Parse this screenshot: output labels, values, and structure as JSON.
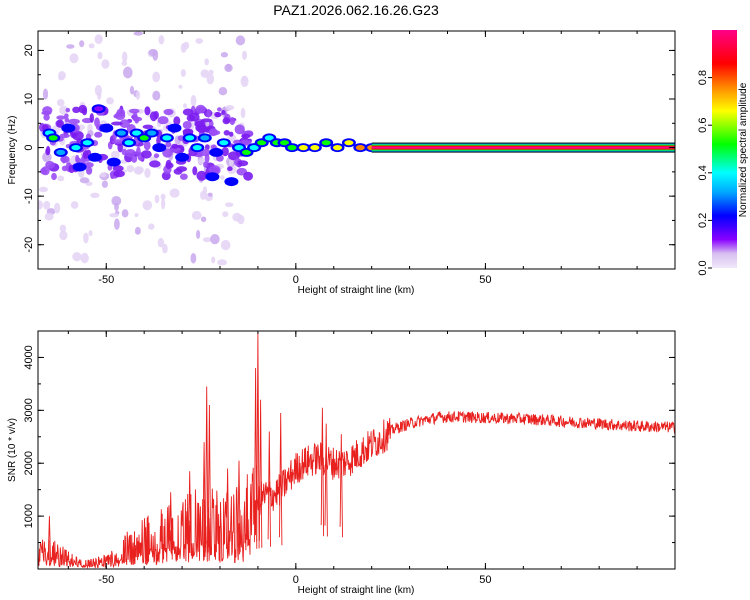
{
  "title": "PAZ1.2026.062.16.26.G23",
  "chart_data": [
    {
      "type": "heatmap",
      "title": "PAZ1.2026.062.16.26.G23",
      "xlabel": "Height of straight line (km)",
      "ylabel": "Frequency (Hz)",
      "xlim": [
        -68,
        100
      ],
      "ylim": [
        -25,
        24
      ],
      "xticks": [
        -50,
        0,
        50
      ],
      "yticks": [
        -20,
        -10,
        0,
        10,
        20
      ],
      "ridge_frequency_hz": 0,
      "colorbar": {
        "label": "Normalized spectral amplitude",
        "range": [
          0,
          1
        ],
        "ticks": [
          "0.0",
          "0.2",
          "0.4",
          "0.6",
          "0.8"
        ],
        "colors": [
          "#f0e8f8",
          "#8800ff",
          "#0000ff",
          "#00aaff",
          "#00ffff",
          "#00ff00",
          "#ffff00",
          "#ff8800",
          "#ff0000",
          "#ff0088"
        ]
      },
      "blobs": [
        {
          "x": -65,
          "f": 3,
          "a": 0.45
        },
        {
          "x": -64,
          "f": 2,
          "a": 0.55
        },
        {
          "x": -62,
          "f": -1,
          "a": 0.35
        },
        {
          "x": -60,
          "f": 4,
          "a": 0.25
        },
        {
          "x": -58,
          "f": 0,
          "a": 0.4
        },
        {
          "x": -57,
          "f": -4,
          "a": 0.3
        },
        {
          "x": -55,
          "f": 1,
          "a": 0.5
        },
        {
          "x": -53,
          "f": -2,
          "a": 0.3
        },
        {
          "x": -52,
          "f": 8,
          "a": 0.2
        },
        {
          "x": -50,
          "f": 4,
          "a": 0.3
        },
        {
          "x": -48,
          "f": -3,
          "a": 0.25
        },
        {
          "x": -46,
          "f": 3,
          "a": 0.35
        },
        {
          "x": -44,
          "f": 1,
          "a": 0.45
        },
        {
          "x": -42,
          "f": 3,
          "a": 0.4
        },
        {
          "x": -40,
          "f": 2,
          "a": 0.55
        },
        {
          "x": -38,
          "f": 3,
          "a": 0.35
        },
        {
          "x": -36,
          "f": 0,
          "a": 0.3
        },
        {
          "x": -34,
          "f": 2,
          "a": 0.45
        },
        {
          "x": -32,
          "f": 4,
          "a": 0.3
        },
        {
          "x": -30,
          "f": -2,
          "a": 0.3
        },
        {
          "x": -28,
          "f": 2,
          "a": 0.4
        },
        {
          "x": -26,
          "f": 0,
          "a": 0.45
        },
        {
          "x": -24,
          "f": 2,
          "a": 0.35
        },
        {
          "x": -22,
          "f": -6,
          "a": 0.25
        },
        {
          "x": -21,
          "f": -1,
          "a": 0.3
        },
        {
          "x": -19,
          "f": 1,
          "a": 0.45
        },
        {
          "x": -17,
          "f": -7,
          "a": 0.25
        },
        {
          "x": -15,
          "f": 0,
          "a": 0.4
        },
        {
          "x": -13,
          "f": -1,
          "a": 0.55
        },
        {
          "x": -11,
          "f": 0,
          "a": 0.5
        },
        {
          "x": -9,
          "f": 1,
          "a": 0.55
        },
        {
          "x": -7,
          "f": 2,
          "a": 0.5
        },
        {
          "x": -5,
          "f": 1,
          "a": 0.6
        },
        {
          "x": -3,
          "f": 1,
          "a": 0.55
        },
        {
          "x": -1,
          "f": 0,
          "a": 0.6
        },
        {
          "x": 2,
          "f": 0,
          "a": 0.75
        },
        {
          "x": 5,
          "f": 0,
          "a": 0.7
        },
        {
          "x": 8,
          "f": 1,
          "a": 0.65
        },
        {
          "x": 11,
          "f": 0,
          "a": 0.75
        },
        {
          "x": 14,
          "f": 1,
          "a": 0.7
        },
        {
          "x": 17,
          "f": 0,
          "a": 0.8
        },
        {
          "x": 20,
          "f": 0,
          "a": 0.85
        }
      ]
    },
    {
      "type": "line",
      "xlabel": "Height of straight line (km)",
      "ylabel": "SNR (10 * v/v)",
      "xlim": [
        -68,
        100
      ],
      "ylim": [
        0,
        4500
      ],
      "xticks": [
        -50,
        0,
        50
      ],
      "yticks": [
        1000,
        2000,
        3000,
        4000
      ],
      "color": "#e8201e",
      "series": [
        {
          "name": "SNR",
          "envelope": [
            {
              "x": -68,
              "y": 300
            },
            {
              "x": -66,
              "y": 450
            },
            {
              "x": -64,
              "y": 380
            },
            {
              "x": -62,
              "y": 300
            },
            {
              "x": -60,
              "y": 220
            },
            {
              "x": -58,
              "y": 160
            },
            {
              "x": -56,
              "y": 120
            },
            {
              "x": -54,
              "y": 120
            },
            {
              "x": -52,
              "y": 150
            },
            {
              "x": -50,
              "y": 200
            },
            {
              "x": -48,
              "y": 280
            },
            {
              "x": -46,
              "y": 380
            },
            {
              "x": -44,
              "y": 480
            },
            {
              "x": -42,
              "y": 560
            },
            {
              "x": -40,
              "y": 650
            },
            {
              "x": -38,
              "y": 700
            },
            {
              "x": -36,
              "y": 770
            },
            {
              "x": -34,
              "y": 830
            },
            {
              "x": -32,
              "y": 880
            },
            {
              "x": -30,
              "y": 950
            },
            {
              "x": -28,
              "y": 1000
            },
            {
              "x": -26,
              "y": 1050
            },
            {
              "x": -24,
              "y": 1050
            },
            {
              "x": -22,
              "y": 1000
            },
            {
              "x": -20,
              "y": 950
            },
            {
              "x": -18,
              "y": 950
            },
            {
              "x": -16,
              "y": 1000
            },
            {
              "x": -14,
              "y": 1100
            },
            {
              "x": -12,
              "y": 1200
            },
            {
              "x": -10,
              "y": 1300
            },
            {
              "x": -8,
              "y": 1400
            },
            {
              "x": -6,
              "y": 1400
            },
            {
              "x": -4,
              "y": 1500
            },
            {
              "x": -2,
              "y": 1700
            },
            {
              "x": 0,
              "y": 1900
            },
            {
              "x": 2,
              "y": 2000
            },
            {
              "x": 4,
              "y": 2050
            },
            {
              "x": 6,
              "y": 2100
            },
            {
              "x": 8,
              "y": 2050
            },
            {
              "x": 10,
              "y": 2000
            },
            {
              "x": 12,
              "y": 2000
            },
            {
              "x": 14,
              "y": 2050
            },
            {
              "x": 16,
              "y": 2150
            },
            {
              "x": 18,
              "y": 2250
            },
            {
              "x": 20,
              "y": 2350
            },
            {
              "x": 22,
              "y": 2450
            },
            {
              "x": 24,
              "y": 2550
            },
            {
              "x": 26,
              "y": 2650
            },
            {
              "x": 28,
              "y": 2700
            },
            {
              "x": 30,
              "y": 2750
            },
            {
              "x": 34,
              "y": 2820
            },
            {
              "x": 38,
              "y": 2870
            },
            {
              "x": 42,
              "y": 2880
            },
            {
              "x": 46,
              "y": 2870
            },
            {
              "x": 50,
              "y": 2860
            },
            {
              "x": 55,
              "y": 2850
            },
            {
              "x": 60,
              "y": 2840
            },
            {
              "x": 65,
              "y": 2820
            },
            {
              "x": 70,
              "y": 2790
            },
            {
              "x": 75,
              "y": 2770
            },
            {
              "x": 80,
              "y": 2750
            },
            {
              "x": 85,
              "y": 2720
            },
            {
              "x": 90,
              "y": 2700
            },
            {
              "x": 95,
              "y": 2690
            },
            {
              "x": 100,
              "y": 2680
            }
          ]
        }
      ],
      "spikes": [
        {
          "x": -23.5,
          "y": 3450
        },
        {
          "x": -22.8,
          "y": 3100
        },
        {
          "x": -24.2,
          "y": 2400
        },
        {
          "x": -10,
          "y": 4480
        },
        {
          "x": -10.6,
          "y": 3800
        },
        {
          "x": -9.3,
          "y": 3200
        },
        {
          "x": -7,
          "y": 2600
        },
        {
          "x": -4,
          "y": 2950
        },
        {
          "x": 7,
          "y": 3050
        },
        {
          "x": 8,
          "y": 2750
        },
        {
          "x": 12,
          "y": 2550
        },
        {
          "x": -65,
          "y": 1000
        },
        {
          "x": -33,
          "y": 1450
        },
        {
          "x": -28,
          "y": 1850
        },
        {
          "x": -18,
          "y": 1900
        },
        {
          "x": -15,
          "y": 2050
        }
      ]
    }
  ]
}
